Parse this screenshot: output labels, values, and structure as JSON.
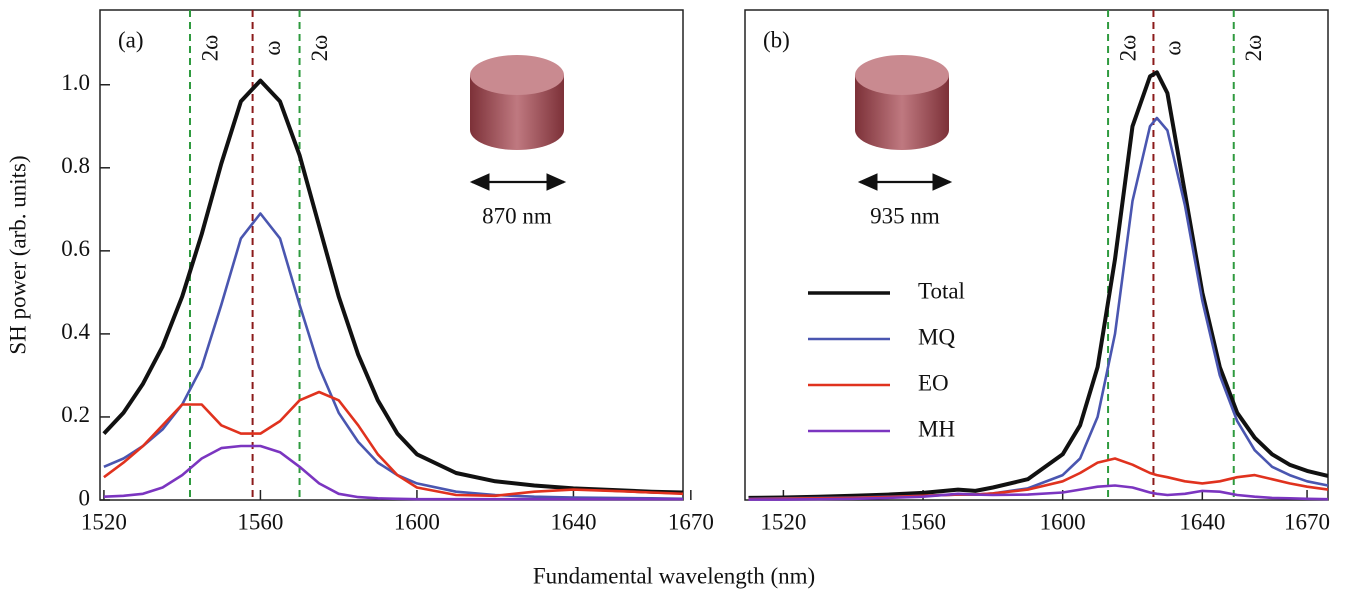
{
  "chart_data": [
    {
      "type": "line",
      "panel_label": "(a)",
      "y_label": "SH power (arb. units)",
      "x_label": "Fundamental wavelength (nm)",
      "size_label": "870 nm",
      "xlim": [
        1519,
        1668
      ],
      "ylim": [
        0,
        1.18
      ],
      "xticks": [
        1520,
        1560,
        1600,
        1640,
        1670
      ],
      "yticks": [
        0,
        0.2,
        0.4,
        0.6,
        0.8,
        {
          "value": 1,
          "label": "1.0"
        }
      ],
      "vlines": [
        {
          "x": 1542,
          "label": "2ω",
          "color": "#2e9a3e"
        },
        {
          "x": 1558,
          "label": "ω",
          "color": "#8b1a1a"
        },
        {
          "x": 1570,
          "label": "2ω",
          "color": "#2e9a3e"
        }
      ],
      "x": [
        1520,
        1525,
        1530,
        1535,
        1540,
        1545,
        1550,
        1555,
        1560,
        1565,
        1570,
        1575,
        1580,
        1585,
        1590,
        1595,
        1600,
        1610,
        1620,
        1630,
        1640,
        1650,
        1660,
        1668
      ],
      "series": [
        {
          "color": "#111111",
          "values": [
            0.16,
            0.21,
            0.28,
            0.37,
            0.49,
            0.64,
            0.81,
            0.96,
            1.01,
            0.96,
            0.83,
            0.66,
            0.49,
            0.35,
            0.24,
            0.16,
            0.11,
            0.065,
            0.045,
            0.035,
            0.028,
            0.024,
            0.02,
            0.018
          ]
        },
        {
          "color": "#4a56b0",
          "values": [
            0.08,
            0.1,
            0.13,
            0.17,
            0.23,
            0.32,
            0.47,
            0.63,
            0.69,
            0.63,
            0.47,
            0.32,
            0.21,
            0.14,
            0.09,
            0.06,
            0.04,
            0.02,
            0.012,
            0.008,
            0.006,
            0.005,
            0.004,
            0.003
          ]
        },
        {
          "color": "#e0321e",
          "values": [
            0.055,
            0.09,
            0.13,
            0.18,
            0.23,
            0.23,
            0.18,
            0.16,
            0.16,
            0.19,
            0.24,
            0.26,
            0.24,
            0.18,
            0.11,
            0.06,
            0.03,
            0.012,
            0.01,
            0.02,
            0.025,
            0.022,
            0.018,
            0.015
          ]
        },
        {
          "color": "#7b35c0",
          "values": [
            0.008,
            0.01,
            0.015,
            0.03,
            0.06,
            0.1,
            0.125,
            0.13,
            0.13,
            0.115,
            0.08,
            0.04,
            0.015,
            0.007,
            0.004,
            0.003,
            0.002,
            0.002,
            0.002,
            0.002,
            0.002,
            0.002,
            0.002,
            0.002
          ]
        }
      ]
    },
    {
      "type": "line",
      "panel_label": "(b)",
      "size_label": "935 nm",
      "xlim": [
        1509,
        1676
      ],
      "ylim": [
        0,
        1.18
      ],
      "xticks": [
        1520,
        1560,
        1600,
        1640,
        1670
      ],
      "vlines": [
        {
          "x": 1613,
          "label": "2ω",
          "color": "#2e9a3e"
        },
        {
          "x": 1626,
          "label": "ω",
          "color": "#8b1a1a"
        },
        {
          "x": 1649,
          "label": "2ω",
          "color": "#2e9a3e"
        }
      ],
      "x": [
        1510,
        1520,
        1530,
        1540,
        1550,
        1560,
        1570,
        1575,
        1580,
        1590,
        1600,
        1605,
        1610,
        1615,
        1620,
        1625,
        1627,
        1630,
        1635,
        1640,
        1645,
        1650,
        1655,
        1660,
        1665,
        1670,
        1676
      ],
      "series": [
        {
          "name": "Total",
          "color": "#111111",
          "values": [
            0.005,
            0.006,
            0.008,
            0.01,
            0.013,
            0.017,
            0.025,
            0.022,
            0.03,
            0.05,
            0.11,
            0.18,
            0.32,
            0.58,
            0.9,
            1.02,
            1.03,
            0.98,
            0.74,
            0.5,
            0.32,
            0.21,
            0.15,
            0.11,
            0.085,
            0.07,
            0.058
          ]
        },
        {
          "name": "MQ",
          "color": "#4a56b0",
          "values": [
            0.003,
            0.004,
            0.005,
            0.006,
            0.008,
            0.01,
            0.013,
            0.013,
            0.016,
            0.028,
            0.06,
            0.1,
            0.2,
            0.4,
            0.72,
            0.9,
            0.92,
            0.89,
            0.71,
            0.48,
            0.3,
            0.19,
            0.12,
            0.08,
            0.06,
            0.045,
            0.035
          ]
        },
        {
          "name": "EO",
          "color": "#e0321e",
          "values": [
            0.002,
            0.003,
            0.004,
            0.005,
            0.007,
            0.01,
            0.013,
            0.013,
            0.016,
            0.025,
            0.045,
            0.065,
            0.09,
            0.1,
            0.085,
            0.065,
            0.06,
            0.055,
            0.045,
            0.04,
            0.045,
            0.055,
            0.06,
            0.05,
            0.04,
            0.032,
            0.025
          ]
        },
        {
          "name": "MH",
          "color": "#7b35c0",
          "values": [
            0.001,
            0.001,
            0.002,
            0.003,
            0.005,
            0.008,
            0.015,
            0.013,
            0.012,
            0.013,
            0.018,
            0.025,
            0.032,
            0.035,
            0.03,
            0.018,
            0.015,
            0.012,
            0.015,
            0.022,
            0.02,
            0.012,
            0.008,
            0.005,
            0.004,
            0.003,
            0.002
          ]
        }
      ]
    }
  ]
}
